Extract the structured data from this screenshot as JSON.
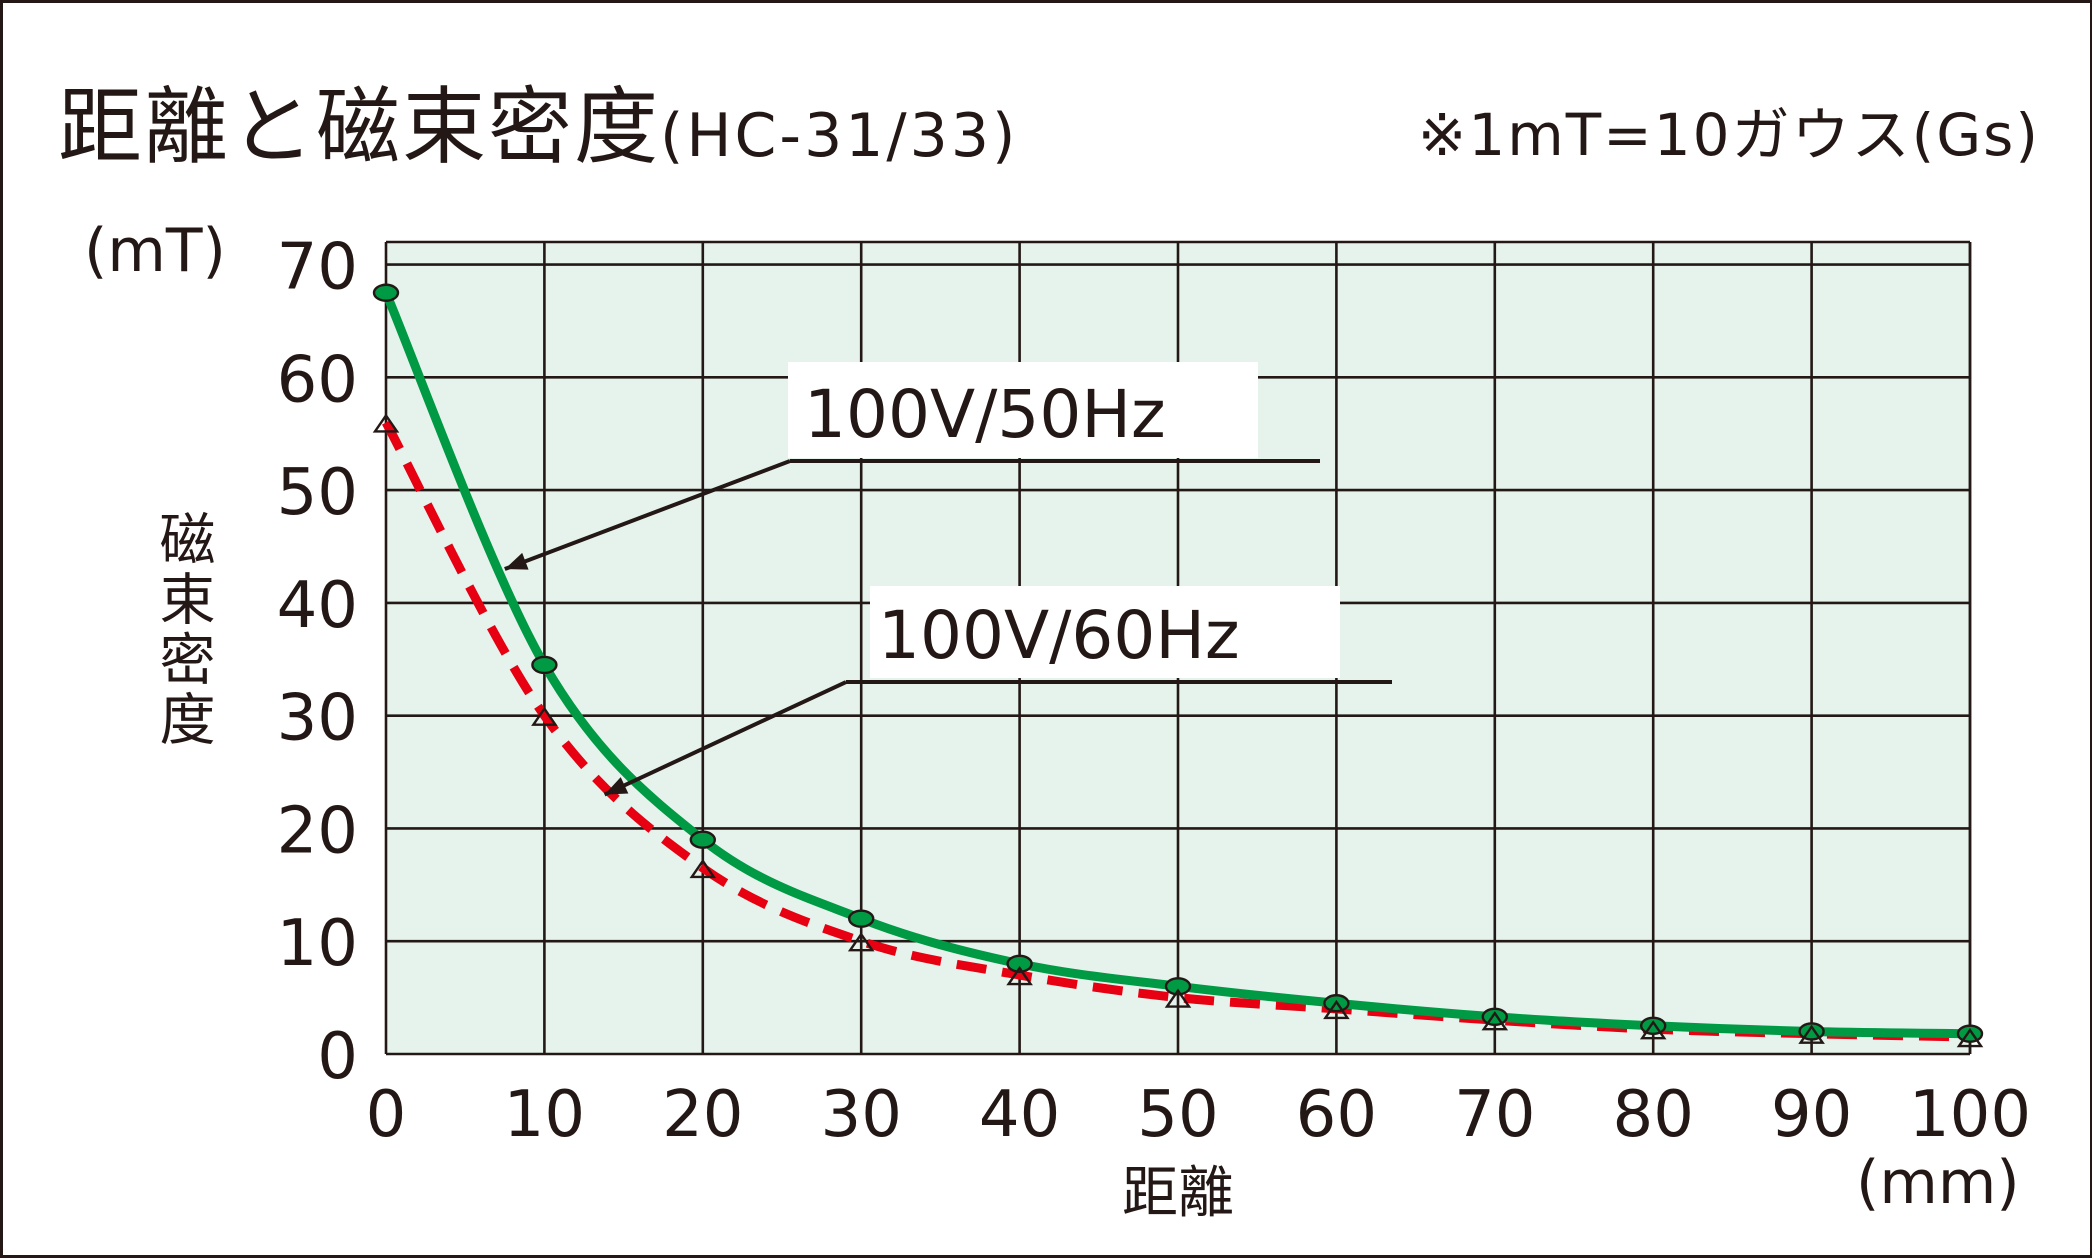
{
  "title": {
    "main": "距離と磁束密度",
    "model": "(HC-31/33)"
  },
  "note": "※1mT=10ガウス(Gs)",
  "chart_data": {
    "type": "line",
    "x": [
      0,
      10,
      20,
      30,
      40,
      50,
      60,
      70,
      80,
      90,
      100
    ],
    "series": [
      {
        "name": "100V/50Hz",
        "values": [
          67.5,
          34.5,
          19,
          12,
          8,
          6,
          4.5,
          3.3,
          2.5,
          2,
          1.8
        ],
        "color": "#009944",
        "line_style": "solid",
        "marker": "circle"
      },
      {
        "name": "100V/60Hz",
        "values": [
          56,
          30,
          16.5,
          10,
          7,
          5,
          4,
          3,
          2.2,
          1.8,
          1.5
        ],
        "color": "#e60012",
        "line_style": "dashed",
        "marker": "triangle"
      }
    ],
    "xlim": [
      0,
      100
    ],
    "ylim": [
      0,
      72
    ],
    "xticks": [
      "0",
      "10",
      "20",
      "30",
      "40",
      "50",
      "60",
      "70",
      "80",
      "90",
      "100"
    ],
    "yticks": [
      "0",
      "10",
      "20",
      "30",
      "40",
      "50",
      "60",
      "70"
    ],
    "xlabel": "距離",
    "ylabel": "磁束密度",
    "x_unit": "(mm)",
    "y_unit": "(mT)",
    "grid": true,
    "plot_background": "#e6f2ec",
    "annotations": [
      {
        "text": "100V/50Hz",
        "series": "100V/50Hz",
        "arrow_to": [
          7.5,
          43
        ]
      },
      {
        "text": "100V/60Hz",
        "series": "100V/60Hz",
        "arrow_to": [
          13.8,
          23
        ]
      }
    ]
  }
}
